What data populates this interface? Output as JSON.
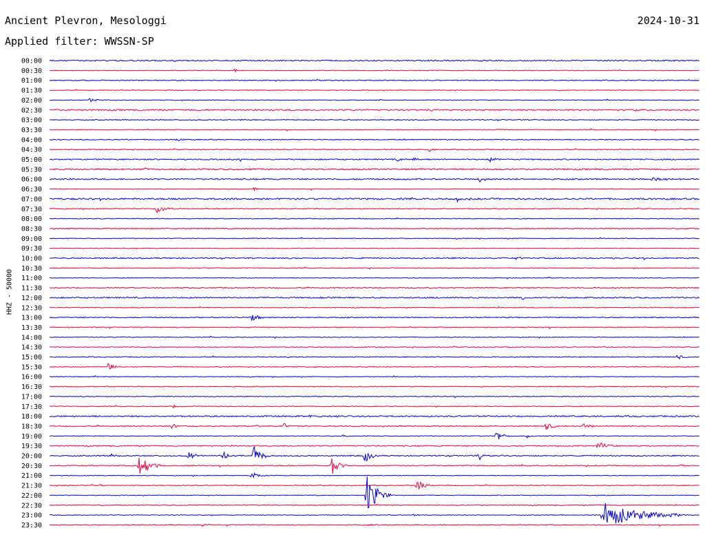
{
  "header": {
    "station": "Ancient Plevron, Mesologgi",
    "date": "2024-10-31",
    "filter_label": "Applied filter: WWSSN-SP"
  },
  "channel_label": "HHZ - 50000",
  "colors": {
    "trace_a": "#0000cc",
    "trace_b": "#e8003a",
    "background": "#ffffff",
    "text": "#000000"
  },
  "chart_data": {
    "type": "line",
    "subtype": "helicorder",
    "title": "Ancient Plevron, Mesologgi",
    "subtitle": "Applied filter: WWSSN-SP",
    "ylabel": "HHZ - 50000",
    "date": "2024-10-31",
    "row_minutes": 30,
    "row_labels": [
      "00:00",
      "00:30",
      "01:00",
      "01:30",
      "02:00",
      "02:30",
      "03:00",
      "03:30",
      "04:00",
      "04:30",
      "05:00",
      "05:30",
      "06:00",
      "06:30",
      "07:00",
      "07:30",
      "08:00",
      "08:30",
      "09:00",
      "09:30",
      "10:00",
      "10:30",
      "11:00",
      "11:30",
      "12:00",
      "12:30",
      "13:00",
      "13:30",
      "14:00",
      "14:30",
      "15:00",
      "15:30",
      "16:00",
      "16:30",
      "17:00",
      "17:30",
      "18:00",
      "18:30",
      "19:00",
      "19:30",
      "20:00",
      "20:30",
      "21:00",
      "21:30",
      "22:00",
      "22:30",
      "23:00",
      "23:30"
    ],
    "series_colors": [
      "#0000cc",
      "#e8003a"
    ],
    "noise_level": [
      1.0,
      0.6,
      0.8,
      0.6,
      0.6,
      1.2,
      0.8,
      0.6,
      0.8,
      0.8,
      1.0,
      1.3,
      1.2,
      0.6,
      1.4,
      0.9,
      0.7,
      0.9,
      0.6,
      0.6,
      1.1,
      0.6,
      0.6,
      0.9,
      1.1,
      0.7,
      0.9,
      0.8,
      0.6,
      0.7,
      0.8,
      0.7,
      0.6,
      0.8,
      0.6,
      0.7,
      1.2,
      0.9,
      0.6,
      0.9,
      1.0,
      0.8,
      0.6,
      0.7,
      0.6,
      0.7,
      0.6,
      0.8
    ],
    "events": [
      {
        "row": 1,
        "minute": 8.5,
        "amplitude": 2,
        "duration": 0.6
      },
      {
        "row": 1,
        "minute": 15.5,
        "amplitude": 1.5,
        "duration": 0.5
      },
      {
        "row": 3,
        "minute": 23.5,
        "amplitude": 1.5,
        "duration": 0.3
      },
      {
        "row": 4,
        "minute": 1.8,
        "amplitude": 3,
        "duration": 0.8
      },
      {
        "row": 4,
        "minute": 15.2,
        "amplitude": 1.5,
        "duration": 0.3
      },
      {
        "row": 5,
        "minute": 17.5,
        "amplitude": 1.5,
        "duration": 0.8
      },
      {
        "row": 5,
        "minute": 27.0,
        "amplitude": 1.5,
        "duration": 0.6
      },
      {
        "row": 6,
        "minute": 8.8,
        "amplitude": 1.5,
        "duration": 0.3
      },
      {
        "row": 7,
        "minute": 20.8,
        "amplitude": 2,
        "duration": 0.4
      },
      {
        "row": 8,
        "minute": 5.8,
        "amplitude": 2,
        "duration": 0.6
      },
      {
        "row": 9,
        "minute": 17.5,
        "amplitude": 3,
        "duration": 0.5
      },
      {
        "row": 10,
        "minute": 8.8,
        "amplitude": 2,
        "duration": 0.6
      },
      {
        "row": 10,
        "minute": 16.0,
        "amplitude": 2.5,
        "duration": 0.8
      },
      {
        "row": 10,
        "minute": 16.8,
        "amplitude": 5,
        "duration": 0.4
      },
      {
        "row": 10,
        "minute": 20.3,
        "amplitude": 5,
        "duration": 0.4
      },
      {
        "row": 11,
        "minute": 4.4,
        "amplitude": 2.5,
        "duration": 0.5
      },
      {
        "row": 11,
        "minute": 9.2,
        "amplitude": 1.5,
        "duration": 0.8
      },
      {
        "row": 12,
        "minute": 19.8,
        "amplitude": 8,
        "duration": 0.4
      },
      {
        "row": 12,
        "minute": 27.7,
        "amplitude": 3,
        "duration": 1.3
      },
      {
        "row": 13,
        "minute": 9.4,
        "amplitude": 7,
        "duration": 0.2
      },
      {
        "row": 14,
        "minute": 18.8,
        "amplitude": 5,
        "duration": 0.3
      },
      {
        "row": 15,
        "minute": 4.9,
        "amplitude": 9,
        "duration": 0.7
      },
      {
        "row": 20,
        "minute": 21.5,
        "amplitude": 2,
        "duration": 0.7
      },
      {
        "row": 20,
        "minute": 26.0,
        "amplitude": 1.5,
        "duration": 0.4
      },
      {
        "row": 24,
        "minute": 12.5,
        "amplitude": 2,
        "duration": 0.3
      },
      {
        "row": 24,
        "minute": 21.8,
        "amplitude": 4,
        "duration": 0.3
      },
      {
        "row": 26,
        "minute": 9.3,
        "amplitude": 8,
        "duration": 0.6
      },
      {
        "row": 30,
        "minute": 11.0,
        "amplitude": 1.5,
        "duration": 0.3
      },
      {
        "row": 30,
        "minute": 29.0,
        "amplitude": 6,
        "duration": 0.4
      },
      {
        "row": 31,
        "minute": 2.7,
        "amplitude": 7,
        "duration": 0.5
      },
      {
        "row": 35,
        "minute": 5.7,
        "amplitude": 2,
        "duration": 0.5
      },
      {
        "row": 36,
        "minute": 12.0,
        "amplitude": 3,
        "duration": 0.3
      },
      {
        "row": 36,
        "minute": 13.2,
        "amplitude": 2,
        "duration": 0.3
      },
      {
        "row": 37,
        "minute": 5.6,
        "amplitude": 6,
        "duration": 0.4
      },
      {
        "row": 37,
        "minute": 9.5,
        "amplitude": 2.5,
        "duration": 0.3
      },
      {
        "row": 37,
        "minute": 10.8,
        "amplitude": 5,
        "duration": 0.4
      },
      {
        "row": 37,
        "minute": 22.9,
        "amplitude": 8,
        "duration": 0.6
      },
      {
        "row": 37,
        "minute": 24.6,
        "amplitude": 7,
        "duration": 0.5
      },
      {
        "row": 37,
        "minute": 26.8,
        "amplitude": 2,
        "duration": 0.3
      },
      {
        "row": 38,
        "minute": 13.5,
        "amplitude": 3,
        "duration": 0.3
      },
      {
        "row": 38,
        "minute": 20.6,
        "amplitude": 10,
        "duration": 0.5
      },
      {
        "row": 38,
        "minute": 22.0,
        "amplitude": 5,
        "duration": 0.3
      },
      {
        "row": 39,
        "minute": 25.3,
        "amplitude": 9,
        "duration": 0.7
      },
      {
        "row": 40,
        "minute": 2.8,
        "amplitude": 3,
        "duration": 0.4
      },
      {
        "row": 40,
        "minute": 6.4,
        "amplitude": 10,
        "duration": 0.5
      },
      {
        "row": 40,
        "minute": 8.0,
        "amplitude": 8,
        "duration": 0.4
      },
      {
        "row": 40,
        "minute": 9.4,
        "amplitude": 16,
        "duration": 0.7
      },
      {
        "row": 40,
        "minute": 14.5,
        "amplitude": 14,
        "duration": 0.5
      },
      {
        "row": 40,
        "minute": 19.8,
        "amplitude": 7,
        "duration": 0.4
      },
      {
        "row": 41,
        "minute": 4.1,
        "amplitude": 26,
        "duration": 0.8
      },
      {
        "row": 41,
        "minute": 13.0,
        "amplitude": 18,
        "duration": 0.6
      },
      {
        "row": 41,
        "minute": 29.1,
        "amplitude": 3,
        "duration": 0.3
      },
      {
        "row": 42,
        "minute": 9.3,
        "amplitude": 8,
        "duration": 0.6
      },
      {
        "row": 43,
        "minute": 0.7,
        "amplitude": 2,
        "duration": 0.3
      },
      {
        "row": 43,
        "minute": 2.3,
        "amplitude": 2,
        "duration": 0.3
      },
      {
        "row": 43,
        "minute": 16.9,
        "amplitude": 10,
        "duration": 0.6
      },
      {
        "row": 44,
        "minute": 14.6,
        "amplitude": 40,
        "duration": 0.9
      },
      {
        "row": 46,
        "minute": 16.8,
        "amplitude": 2,
        "duration": 0.3
      },
      {
        "row": 46,
        "minute": 25.5,
        "amplitude": 20,
        "duration": 3.2
      },
      {
        "row": 46,
        "minute": 29.0,
        "amplitude": 2,
        "duration": 0.5
      },
      {
        "row": 47,
        "minute": 3.7,
        "amplitude": 2.5,
        "duration": 0.3
      },
      {
        "row": 47,
        "minute": 7.0,
        "amplitude": 2.5,
        "duration": 0.6
      },
      {
        "row": 47,
        "minute": 14.7,
        "amplitude": 2,
        "duration": 0.3
      }
    ]
  }
}
